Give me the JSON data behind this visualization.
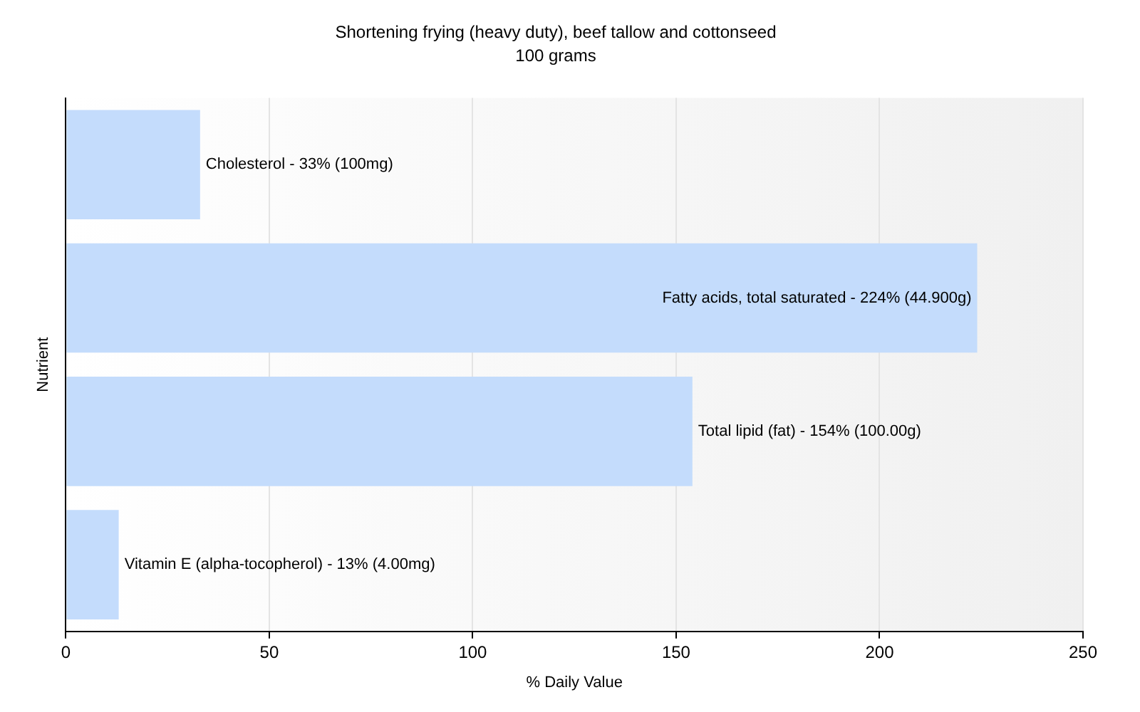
{
  "chart_data": {
    "type": "bar",
    "orientation": "horizontal",
    "title": "Shortening frying (heavy duty), beef tallow and cottonseed",
    "subtitle": "100 grams",
    "xlabel": "% Daily Value",
    "ylabel": "Nutrient",
    "categories": [
      "Cholesterol -",
      "Fatty acids, total saturated -",
      "Total lipid (fat) -",
      "Vitamin E (alpha-tocopherol) -"
    ],
    "values": [
      33,
      224,
      154,
      13
    ],
    "value_labels": [
      "33% (100mg)",
      "224% (44.900g)",
      "154% (100.00g)",
      "13% (4.00mg)"
    ],
    "color": "#c4dcfc",
    "xlim": [
      0,
      250
    ],
    "xticks": [
      0,
      50,
      100,
      150,
      200,
      250
    ],
    "grid": "x",
    "legend": false
  }
}
